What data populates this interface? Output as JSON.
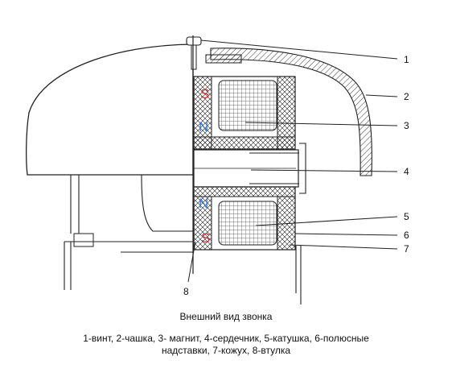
{
  "callouts": [
    "1",
    "2",
    "3",
    "4",
    "5",
    "6",
    "7",
    "8"
  ],
  "pole_labels": {
    "top_outer": "S",
    "top_inner": "N",
    "bottom_inner": "N",
    "bottom_outer": "S"
  },
  "colors": {
    "south": "#cc3333",
    "north": "#3a7bd5",
    "stroke": "#222222"
  },
  "caption": "Внешний вид звонка",
  "legend": {
    "line1": "1-винт, 2-чашка, 3- магнит, 4-сердечник, 5-катушка, 6-полюсные",
    "line2": "надставки, 7-кожух, 8-втулка"
  }
}
